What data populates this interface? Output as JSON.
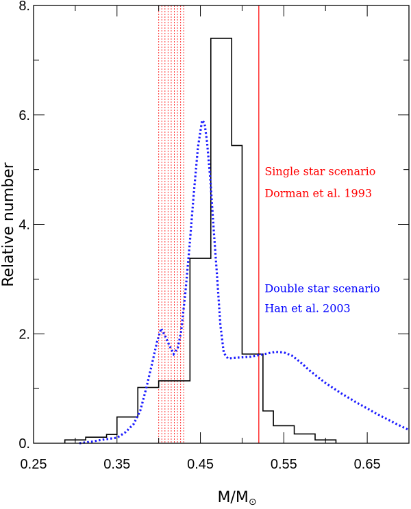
{
  "chart_data": {
    "type": "histogram",
    "xlabel": "M/M",
    "xlabel_sub": "⊙",
    "ylabel": "Relative number",
    "xlim": [
      0.25,
      0.7
    ],
    "ylim": [
      0,
      8
    ],
    "xticks": [
      0.25,
      0.35,
      0.45,
      0.55,
      0.65
    ],
    "xtick_labels": [
      "0.25",
      "0.35",
      "0.45",
      "0.55",
      "0.65"
    ],
    "yticks": [
      0,
      2,
      4,
      6,
      8
    ],
    "ytick_labels": [
      "0.",
      "2.",
      "4.",
      "6.",
      "8."
    ],
    "x_minor_step": 0.05,
    "y_minor_step": 1,
    "grid": false,
    "series": [
      {
        "style": "step",
        "color": "#000000",
        "bins": [
          {
            "x0": 0.2875,
            "x1": 0.3,
            "y": 0.06
          },
          {
            "x0": 0.3,
            "x1": 0.3125,
            "y": 0.06
          },
          {
            "x0": 0.3125,
            "x1": 0.325,
            "y": 0.11
          },
          {
            "x0": 0.325,
            "x1": 0.3375,
            "y": 0.11
          },
          {
            "x0": 0.3375,
            "x1": 0.35,
            "y": 0.16
          },
          {
            "x0": 0.35,
            "x1": 0.3625,
            "y": 0.48
          },
          {
            "x0": 0.3625,
            "x1": 0.375,
            "y": 0.48
          },
          {
            "x0": 0.375,
            "x1": 0.3875,
            "y": 1.02
          },
          {
            "x0": 0.3875,
            "x1": 0.4,
            "y": 1.02
          },
          {
            "x0": 0.4,
            "x1": 0.425,
            "y": 1.14
          },
          {
            "x0": 0.425,
            "x1": 0.4375,
            "y": 1.14
          },
          {
            "x0": 0.4375,
            "x1": 0.45,
            "y": 3.38
          },
          {
            "x0": 0.45,
            "x1": 0.4625,
            "y": 3.38
          },
          {
            "x0": 0.4625,
            "x1": 0.475,
            "y": 7.4
          },
          {
            "x0": 0.475,
            "x1": 0.4875,
            "y": 7.4
          },
          {
            "x0": 0.4875,
            "x1": 0.5,
            "y": 5.44
          },
          {
            "x0": 0.5,
            "x1": 0.5125,
            "y": 1.63
          },
          {
            "x0": 0.5125,
            "x1": 0.525,
            "y": 1.63
          },
          {
            "x0": 0.525,
            "x1": 0.5375,
            "y": 0.59
          },
          {
            "x0": 0.5375,
            "x1": 0.55,
            "y": 0.32
          },
          {
            "x0": 0.55,
            "x1": 0.5625,
            "y": 0.32
          },
          {
            "x0": 0.5625,
            "x1": 0.575,
            "y": 0.17
          },
          {
            "x0": 0.575,
            "x1": 0.5875,
            "y": 0.17
          },
          {
            "x0": 0.5875,
            "x1": 0.6,
            "y": 0.06
          },
          {
            "x0": 0.6,
            "x1": 0.6125,
            "y": 0.06
          }
        ]
      },
      {
        "style": "dotted-line",
        "color": "#1a1aff",
        "x": [
          0.305,
          0.32,
          0.335,
          0.35,
          0.36,
          0.37,
          0.378,
          0.385,
          0.392,
          0.398,
          0.403,
          0.408,
          0.413,
          0.418,
          0.423,
          0.427,
          0.432,
          0.437,
          0.442,
          0.447,
          0.452,
          0.455,
          0.458,
          0.462,
          0.466,
          0.47,
          0.474,
          0.478,
          0.483,
          0.49,
          0.5,
          0.51,
          0.52,
          0.53,
          0.54,
          0.55,
          0.56,
          0.57,
          0.58,
          0.6,
          0.62,
          0.64,
          0.66,
          0.68,
          0.7
        ],
        "y": [
          0.0,
          0.03,
          0.07,
          0.1,
          0.2,
          0.35,
          0.6,
          1.0,
          1.45,
          1.85,
          2.1,
          1.95,
          1.78,
          1.63,
          1.75,
          2.05,
          2.75,
          3.6,
          4.55,
          5.4,
          5.9,
          5.85,
          5.5,
          4.8,
          3.9,
          3.05,
          2.15,
          1.65,
          1.55,
          1.56,
          1.57,
          1.58,
          1.61,
          1.64,
          1.67,
          1.66,
          1.6,
          1.48,
          1.34,
          1.1,
          0.9,
          0.72,
          0.55,
          0.39,
          0.24
        ]
      }
    ],
    "vertical_lines": [
      {
        "x": 0.52,
        "color": "#ff3030",
        "style": "solid"
      }
    ],
    "shaded_band": {
      "x0": 0.4,
      "x1": 0.43,
      "color": "#ff3030",
      "style": "dotted",
      "count": 9
    },
    "annotations": [
      {
        "lines": [
          "Single star scenario",
          "Dorman et al. 1993"
        ],
        "color": "#ff0000",
        "x": 0.527,
        "y": [
          4.9,
          4.5
        ]
      },
      {
        "lines": [
          "Double star scenario",
          "Han et al. 2003"
        ],
        "color": "#0000ff",
        "x": 0.527,
        "y": [
          2.76,
          2.4
        ]
      }
    ]
  }
}
